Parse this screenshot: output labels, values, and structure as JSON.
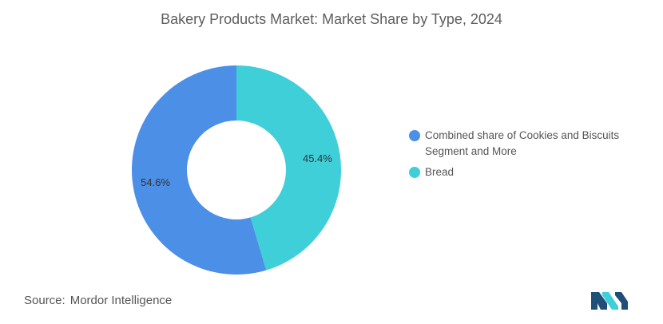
{
  "title": "Bakery Products Market: Market Share by Type, 2024",
  "source": {
    "label": "Source:",
    "value": "Mordor Intelligence"
  },
  "chart_data": {
    "type": "pie",
    "variant": "donut",
    "title": "Bakery Products Market: Market Share by Type, 2024",
    "series": [
      {
        "name": "Combined share of Cookies and Biscuits Segment and More",
        "value": 54.6,
        "label": "54.6%",
        "color": "#4c8fe6"
      },
      {
        "name": "Bread",
        "value": 45.4,
        "label": "45.4%",
        "color": "#3ecfd9"
      }
    ],
    "legend_position": "right"
  },
  "logo": {
    "icon": "mordor-intelligence-logo-icon",
    "colors": [
      "#1f4e79",
      "#3ecfd9"
    ]
  }
}
